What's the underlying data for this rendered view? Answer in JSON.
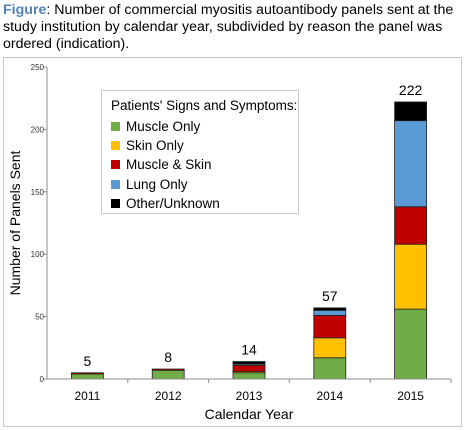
{
  "caption": {
    "label": "Figure",
    "text": ": Number of commercial myositis autoantibody panels sent at the study institution by calendar year, subdivided by reason the panel was ordered (indication)."
  },
  "chart_data": {
    "type": "bar",
    "stacked": true,
    "categories": [
      "2011",
      "2012",
      "2013",
      "2014",
      "2015"
    ],
    "series": [
      {
        "name": "Muscle Only",
        "color": "#70ad47",
        "values": [
          4,
          7,
          5,
          17,
          56
        ]
      },
      {
        "name": "Skin Only",
        "color": "#ffc000",
        "values": [
          0,
          0,
          1,
          16,
          52
        ]
      },
      {
        "name": "Muscle & Skin",
        "color": "#c00000",
        "values": [
          1,
          1,
          5,
          18,
          30
        ]
      },
      {
        "name": "Lung Only",
        "color": "#5b9bd5",
        "values": [
          0,
          0,
          1,
          4,
          69
        ]
      },
      {
        "name": "Other/Unknown",
        "color": "#000000",
        "values": [
          0,
          0,
          2,
          2,
          15
        ]
      }
    ],
    "totals": [
      "5",
      "8",
      "14",
      "57",
      "222"
    ],
    "xlabel": "Calendar Year",
    "ylabel": "Number of Panels Sent",
    "ylim": [
      0,
      250
    ],
    "yticks": [
      "0",
      "50",
      "100",
      "150",
      "200",
      "250"
    ],
    "grid": false,
    "legend_title": "Patients' Signs and Symptoms:",
    "legend_position": "top-left"
  }
}
